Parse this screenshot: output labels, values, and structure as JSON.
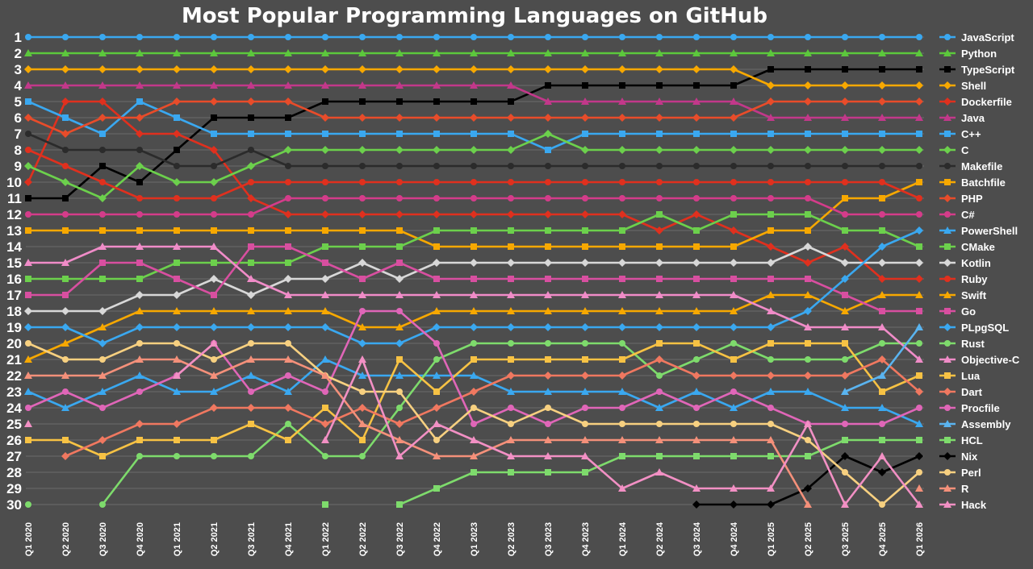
{
  "chart_data": {
    "type": "line",
    "title": "Most Popular Programming Languages on GitHub",
    "xlabel": "",
    "ylabel": "",
    "ylim": [
      1,
      30
    ],
    "y_inverted": true,
    "grid": true,
    "legend_position": "right",
    "background": "#4d4d4d",
    "categories": [
      "Q1 2020",
      "Q2 2020",
      "Q3 2020",
      "Q4 2020",
      "Q1 2021",
      "Q2 2021",
      "Q3 2021",
      "Q4 2021",
      "Q1 2022",
      "Q2 2022",
      "Q3 2022",
      "Q4 2022",
      "Q1 2023",
      "Q2 2023",
      "Q3 2023",
      "Q4 2023",
      "Q1 2024",
      "Q2 2024",
      "Q3 2024",
      "Q4 2024",
      "Q1 2025",
      "Q2 2025",
      "Q3 2025",
      "Q4 2025",
      "Q1 2026"
    ],
    "y_ticks": [
      1,
      2,
      3,
      4,
      5,
      6,
      7,
      8,
      9,
      10,
      11,
      12,
      13,
      14,
      15,
      16,
      17,
      18,
      19,
      20,
      21,
      22,
      23,
      24,
      25,
      26,
      27,
      28,
      29,
      30
    ],
    "series": [
      {
        "name": "JavaScript",
        "color": "#3aa8f0",
        "marker": "circle",
        "values": [
          1,
          1,
          1,
          1,
          1,
          1,
          1,
          1,
          1,
          1,
          1,
          1,
          1,
          1,
          1,
          1,
          1,
          1,
          1,
          1,
          1,
          1,
          1,
          1,
          1
        ]
      },
      {
        "name": "Python",
        "color": "#5cc83c",
        "marker": "triangle",
        "values": [
          2,
          2,
          2,
          2,
          2,
          2,
          2,
          2,
          2,
          2,
          2,
          2,
          2,
          2,
          2,
          2,
          2,
          2,
          2,
          2,
          2,
          2,
          2,
          2,
          2
        ]
      },
      {
        "name": "TypeScript",
        "color": "#000000",
        "marker": "square",
        "values": [
          11,
          11,
          9,
          10,
          8,
          6,
          6,
          6,
          5,
          5,
          5,
          5,
          5,
          5,
          4,
          4,
          4,
          4,
          4,
          4,
          3,
          3,
          3,
          3,
          3
        ]
      },
      {
        "name": "Shell",
        "color": "#f7a800",
        "marker": "diamond",
        "values": [
          3,
          3,
          3,
          3,
          3,
          3,
          3,
          3,
          3,
          3,
          3,
          3,
          3,
          3,
          3,
          3,
          3,
          3,
          3,
          3,
          4,
          4,
          4,
          4,
          4
        ]
      },
      {
        "name": "Dockerfile",
        "color": "#e0301e",
        "marker": "diamond",
        "values": [
          10,
          5,
          5,
          7,
          7,
          8,
          11,
          12,
          12,
          12,
          12,
          12,
          12,
          12,
          12,
          12,
          12,
          13,
          12,
          13,
          14,
          15,
          14,
          16,
          16
        ]
      },
      {
        "name": "Java",
        "color": "#c2388a",
        "marker": "triangle",
        "values": [
          4,
          4,
          4,
          4,
          4,
          4,
          4,
          4,
          4,
          4,
          4,
          4,
          4,
          4,
          5,
          5,
          5,
          5,
          5,
          5,
          6,
          6,
          6,
          6,
          6
        ]
      },
      {
        "name": "C++",
        "color": "#3aa8f0",
        "marker": "square",
        "values": [
          5,
          6,
          7,
          5,
          6,
          7,
          7,
          7,
          7,
          7,
          7,
          7,
          7,
          7,
          8,
          7,
          7,
          7,
          7,
          7,
          7,
          7,
          7,
          7,
          7
        ]
      },
      {
        "name": "C",
        "color": "#6cd04c",
        "marker": "diamond",
        "values": [
          9,
          10,
          11,
          9,
          10,
          10,
          9,
          8,
          8,
          8,
          8,
          8,
          8,
          8,
          7,
          8,
          8,
          8,
          8,
          8,
          8,
          8,
          8,
          8,
          8
        ]
      },
      {
        "name": "Makefile",
        "color": "#2b2b2b",
        "marker": "circle",
        "values": [
          7,
          8,
          8,
          8,
          9,
          9,
          8,
          9,
          9,
          9,
          9,
          9,
          9,
          9,
          9,
          9,
          9,
          9,
          9,
          9,
          9,
          9,
          9,
          9,
          9
        ]
      },
      {
        "name": "Batchfile",
        "color": "#f7a800",
        "marker": "square",
        "values": [
          13,
          13,
          13,
          13,
          13,
          13,
          13,
          13,
          13,
          13,
          13,
          14,
          14,
          14,
          14,
          14,
          14,
          14,
          14,
          14,
          13,
          13,
          11,
          11,
          10
        ]
      },
      {
        "name": "PHP",
        "color": "#e84c2a",
        "marker": "diamond",
        "values": [
          6,
          7,
          6,
          6,
          5,
          5,
          5,
          5,
          6,
          6,
          6,
          6,
          6,
          6,
          6,
          6,
          6,
          6,
          6,
          6,
          5,
          5,
          5,
          5,
          5
        ]
      },
      {
        "name": "C#",
        "color": "#d43c8a",
        "marker": "circle",
        "values": [
          12,
          12,
          12,
          12,
          12,
          12,
          12,
          11,
          11,
          11,
          11,
          11,
          11,
          11,
          11,
          11,
          11,
          11,
          11,
          11,
          11,
          11,
          12,
          12,
          12
        ]
      },
      {
        "name": "PowerShell",
        "color": "#3aa8f0",
        "marker": "triangle",
        "values": [
          23,
          24,
          23,
          22,
          23,
          23,
          22,
          23,
          21,
          22,
          22,
          22,
          22,
          23,
          23,
          23,
          23,
          24,
          23,
          24,
          23,
          23,
          24,
          24,
          25
        ]
      },
      {
        "name": "CMake",
        "color": "#6cd04c",
        "marker": "square",
        "values": [
          16,
          16,
          16,
          16,
          15,
          15,
          15,
          15,
          14,
          14,
          14,
          13,
          13,
          13,
          13,
          13,
          13,
          12,
          13,
          12,
          12,
          12,
          13,
          13,
          14
        ]
      },
      {
        "name": "Kotlin",
        "color": "#d8d8d8",
        "marker": "diamond",
        "values": [
          18,
          18,
          18,
          17,
          17,
          16,
          17,
          16,
          16,
          15,
          16,
          15,
          15,
          15,
          15,
          15,
          15,
          15,
          15,
          15,
          15,
          14,
          15,
          15,
          15
        ]
      },
      {
        "name": "Ruby",
        "color": "#e0301e",
        "marker": "circle",
        "values": [
          8,
          9,
          10,
          11,
          11,
          11,
          10,
          10,
          10,
          10,
          10,
          10,
          10,
          10,
          10,
          10,
          10,
          10,
          10,
          10,
          10,
          10,
          10,
          10,
          11
        ]
      },
      {
        "name": "Swift",
        "color": "#f7a800",
        "marker": "triangle",
        "values": [
          21,
          20,
          19,
          18,
          18,
          18,
          18,
          18,
          18,
          19,
          19,
          18,
          18,
          18,
          18,
          18,
          18,
          18,
          18,
          18,
          17,
          17,
          18,
          17,
          17
        ]
      },
      {
        "name": "Go",
        "color": "#d84fa0",
        "marker": "square",
        "values": [
          17,
          17,
          15,
          15,
          16,
          17,
          14,
          14,
          15,
          16,
          15,
          16,
          16,
          16,
          16,
          16,
          16,
          16,
          16,
          16,
          16,
          16,
          17,
          18,
          18
        ]
      },
      {
        "name": "PLpgSQL",
        "color": "#3aa8f0",
        "marker": "diamond",
        "values": [
          19,
          19,
          20,
          19,
          19,
          19,
          19,
          19,
          19,
          20,
          20,
          19,
          19,
          19,
          19,
          19,
          19,
          19,
          19,
          19,
          19,
          18,
          16,
          14,
          13
        ]
      },
      {
        "name": "Rust",
        "color": "#7edb6c",
        "marker": "circle",
        "values": [
          30,
          null,
          30,
          27,
          27,
          27,
          27,
          25,
          27,
          27,
          24,
          21,
          20,
          20,
          20,
          20,
          20,
          22,
          21,
          20,
          21,
          21,
          21,
          20,
          20
        ]
      },
      {
        "name": "Objective-C",
        "color": "#f08cc8",
        "marker": "triangle",
        "values": [
          15,
          15,
          14,
          14,
          14,
          14,
          16,
          17,
          17,
          17,
          17,
          17,
          17,
          17,
          17,
          17,
          17,
          17,
          17,
          17,
          18,
          19,
          19,
          19,
          21
        ]
      },
      {
        "name": "Lua",
        "color": "#f7c244",
        "marker": "square",
        "values": [
          26,
          26,
          27,
          26,
          26,
          26,
          25,
          26,
          24,
          26,
          21,
          23,
          21,
          21,
          21,
          21,
          21,
          20,
          20,
          21,
          20,
          20,
          20,
          23,
          22
        ]
      },
      {
        "name": "Dart",
        "color": "#f07860",
        "marker": "diamond",
        "values": [
          null,
          27,
          26,
          25,
          25,
          24,
          24,
          24,
          25,
          24,
          25,
          24,
          23,
          22,
          22,
          22,
          22,
          21,
          22,
          22,
          22,
          22,
          22,
          21,
          23
        ]
      },
      {
        "name": "Procfile",
        "color": "#e066b8",
        "marker": "circle",
        "values": [
          24,
          23,
          24,
          23,
          22,
          20,
          23,
          22,
          23,
          18,
          18,
          20,
          25,
          24,
          25,
          24,
          24,
          23,
          24,
          23,
          24,
          25,
          25,
          25,
          24
        ]
      },
      {
        "name": "Assembly",
        "color": "#5ab4f0",
        "marker": "triangle",
        "values": [
          null,
          null,
          null,
          null,
          null,
          null,
          null,
          null,
          null,
          null,
          null,
          null,
          null,
          null,
          null,
          null,
          null,
          null,
          null,
          null,
          null,
          null,
          23,
          22,
          19
        ]
      },
      {
        "name": "HCL",
        "color": "#7edb6c",
        "marker": "square",
        "values": [
          null,
          null,
          null,
          null,
          null,
          null,
          null,
          null,
          30,
          null,
          30,
          29,
          28,
          28,
          28,
          28,
          27,
          27,
          27,
          27,
          27,
          27,
          26,
          26,
          26
        ]
      },
      {
        "name": "Nix",
        "color": "#000000",
        "marker": "diamond",
        "values": [
          null,
          null,
          null,
          null,
          null,
          null,
          null,
          null,
          null,
          null,
          null,
          null,
          null,
          null,
          null,
          null,
          null,
          null,
          30,
          30,
          30,
          29,
          27,
          28,
          27
        ]
      },
      {
        "name": "Perl",
        "color": "#f7d080",
        "marker": "circle",
        "values": [
          20,
          21,
          21,
          20,
          20,
          21,
          20,
          20,
          22,
          23,
          23,
          26,
          24,
          25,
          24,
          25,
          25,
          25,
          25,
          25,
          25,
          26,
          28,
          30,
          28
        ]
      },
      {
        "name": "R",
        "color": "#f4907a",
        "marker": "triangle",
        "values": [
          22,
          22,
          22,
          21,
          21,
          22,
          21,
          21,
          22,
          25,
          26,
          27,
          27,
          26,
          26,
          26,
          26,
          26,
          26,
          26,
          26,
          30,
          null,
          null,
          29
        ]
      },
      {
        "name": "Hack",
        "color": "#f290c4",
        "marker": "triangle",
        "values": [
          25,
          null,
          null,
          null,
          22,
          20,
          null,
          null,
          26,
          21,
          27,
          25,
          26,
          27,
          27,
          27,
          29,
          28,
          29,
          29,
          29,
          25,
          30,
          27,
          30
        ]
      }
    ]
  }
}
